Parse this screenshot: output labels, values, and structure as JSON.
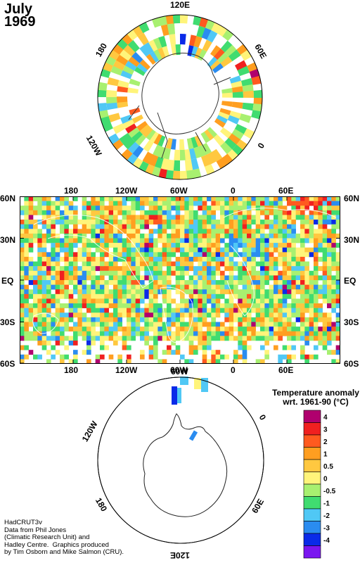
{
  "title": {
    "month": "July",
    "year": "1969"
  },
  "north_polar": {
    "labels": {
      "top": "120E",
      "upper_left": "180",
      "upper_right": "60E",
      "lower_left": "120W",
      "lower_right": "0"
    }
  },
  "world_map": {
    "lat_labels": [
      "60N",
      "30N",
      "EQ",
      "30S",
      "60S"
    ],
    "lon_labels": [
      "180",
      "120W",
      "60W",
      "0",
      "60E"
    ]
  },
  "south_polar": {
    "labels": {
      "upper_left": "120W",
      "top": "60W",
      "upper_right": "0",
      "lower_left": "180",
      "lower_right": "60E",
      "bottom": "120E"
    }
  },
  "legend": {
    "title_line1": "Temperature anomaly",
    "title_line2": "wrt. 1961-90  (°C)",
    "entries": [
      {
        "label": "4",
        "color": "#b0006e"
      },
      {
        "label": "3",
        "color": "#f02020"
      },
      {
        "label": "2",
        "color": "#ff5a1f"
      },
      {
        "label": "1",
        "color": "#ff9e20"
      },
      {
        "label": "0.5",
        "color": "#ffc840"
      },
      {
        "label": "0",
        "color": "#fff47a"
      },
      {
        "label": "-0.5",
        "color": "#a8f070"
      },
      {
        "label": "-1",
        "color": "#40dc70"
      },
      {
        "label": "-2",
        "color": "#50c8f5"
      },
      {
        "label": "-3",
        "color": "#2a8cf0"
      },
      {
        "label": "-4",
        "color": "#0a2ae8"
      },
      {
        "label": "",
        "color": "#7a16f0"
      }
    ]
  },
  "credit": "HadCRUT3v\nData from Phil Jones\n(Climatic Research Unit) and\nHadley Centre.  Graphics produced\nby Tim Osborn and Mike Salmon (CRU)."
}
